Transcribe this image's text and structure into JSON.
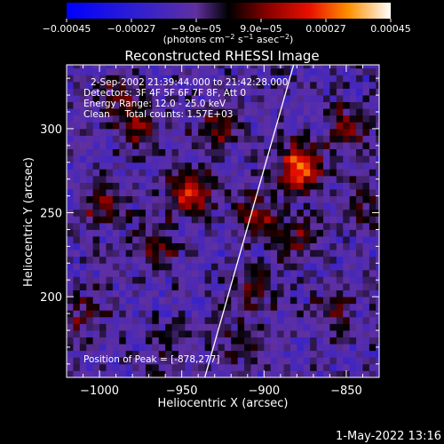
{
  "chart_data": {
    "type": "heatmap",
    "title": "Reconstructed RHESSI Image",
    "xlabel": "Heliocentric X (arcsec)",
    "ylabel": "Heliocentric Y (arcsec)",
    "xlim": [
      -1020,
      -830
    ],
    "ylim": [
      152,
      338
    ],
    "xticks": [
      -1000,
      -950,
      -900,
      -850
    ],
    "yticks": [
      200,
      250,
      300
    ],
    "xtick_labels": [
      "−1000",
      "−950",
      "−900",
      "−850"
    ],
    "ytick_labels": [
      "200",
      "250",
      "300"
    ],
    "colorbar": {
      "min": -0.00045,
      "max": 0.00045,
      "ticks": [
        -0.00045,
        -0.00027,
        -9e-05,
        9e-05,
        0.00027,
        0.00045
      ],
      "tick_labels": [
        "−0.00045",
        "−0.00027",
        "−9.0e−05",
        "9.0e−05",
        "0.00027",
        "0.00045"
      ],
      "unit_main": "(photons cm",
      "unit_exp1": "−2",
      "unit_mid1": " s",
      "unit_exp2": "−1",
      "unit_mid2": " asec",
      "unit_exp3": "−2",
      "unit_end": ")"
    },
    "annotations": {
      "time_range": "2-Sep-2002 21:39:44.000 to 21:42:28.000",
      "detectors": "Detectors: 3F 4F 5F 6F 7F 8F, Att 0",
      "energy": "Energy Range: 12.0 - 25.0 keV",
      "clean": "Clean     Total counts: 1.57E+03",
      "peak": "Position of Peak = [-878,277]"
    },
    "peak": [
      -878,
      277
    ],
    "sources": [
      {
        "x": -878,
        "y": 277,
        "amp": 0.00045
      },
      {
        "x": -945,
        "y": 262,
        "amp": 0.0003
      },
      {
        "x": -905,
        "y": 248,
        "amp": 0.00022
      },
      {
        "x": -975,
        "y": 300,
        "amp": 0.0002
      },
      {
        "x": -930,
        "y": 300,
        "amp": 0.00018
      },
      {
        "x": -1000,
        "y": 255,
        "amp": 0.00017
      },
      {
        "x": -850,
        "y": 300,
        "amp": 0.00018
      },
      {
        "x": -905,
        "y": 205,
        "amp": 0.00016
      },
      {
        "x": -1010,
        "y": 190,
        "amp": 0.00015
      },
      {
        "x": -858,
        "y": 192,
        "amp": 0.00013
      },
      {
        "x": -965,
        "y": 230,
        "amp": 0.00016
      },
      {
        "x": -880,
        "y": 235,
        "amp": 0.00017
      },
      {
        "x": -988,
        "y": 320,
        "amp": 0.00014
      },
      {
        "x": -840,
        "y": 255,
        "amp": 0.00012
      },
      {
        "x": -960,
        "y": 168,
        "amp": 0.0001
      },
      {
        "x": -915,
        "y": 170,
        "amp": 0.00011
      }
    ],
    "limb": [
      [
        -882,
        338
      ],
      [
        -936,
        152
      ]
    ]
  },
  "footer": {
    "timestamp": "1-May-2022 13:16"
  }
}
